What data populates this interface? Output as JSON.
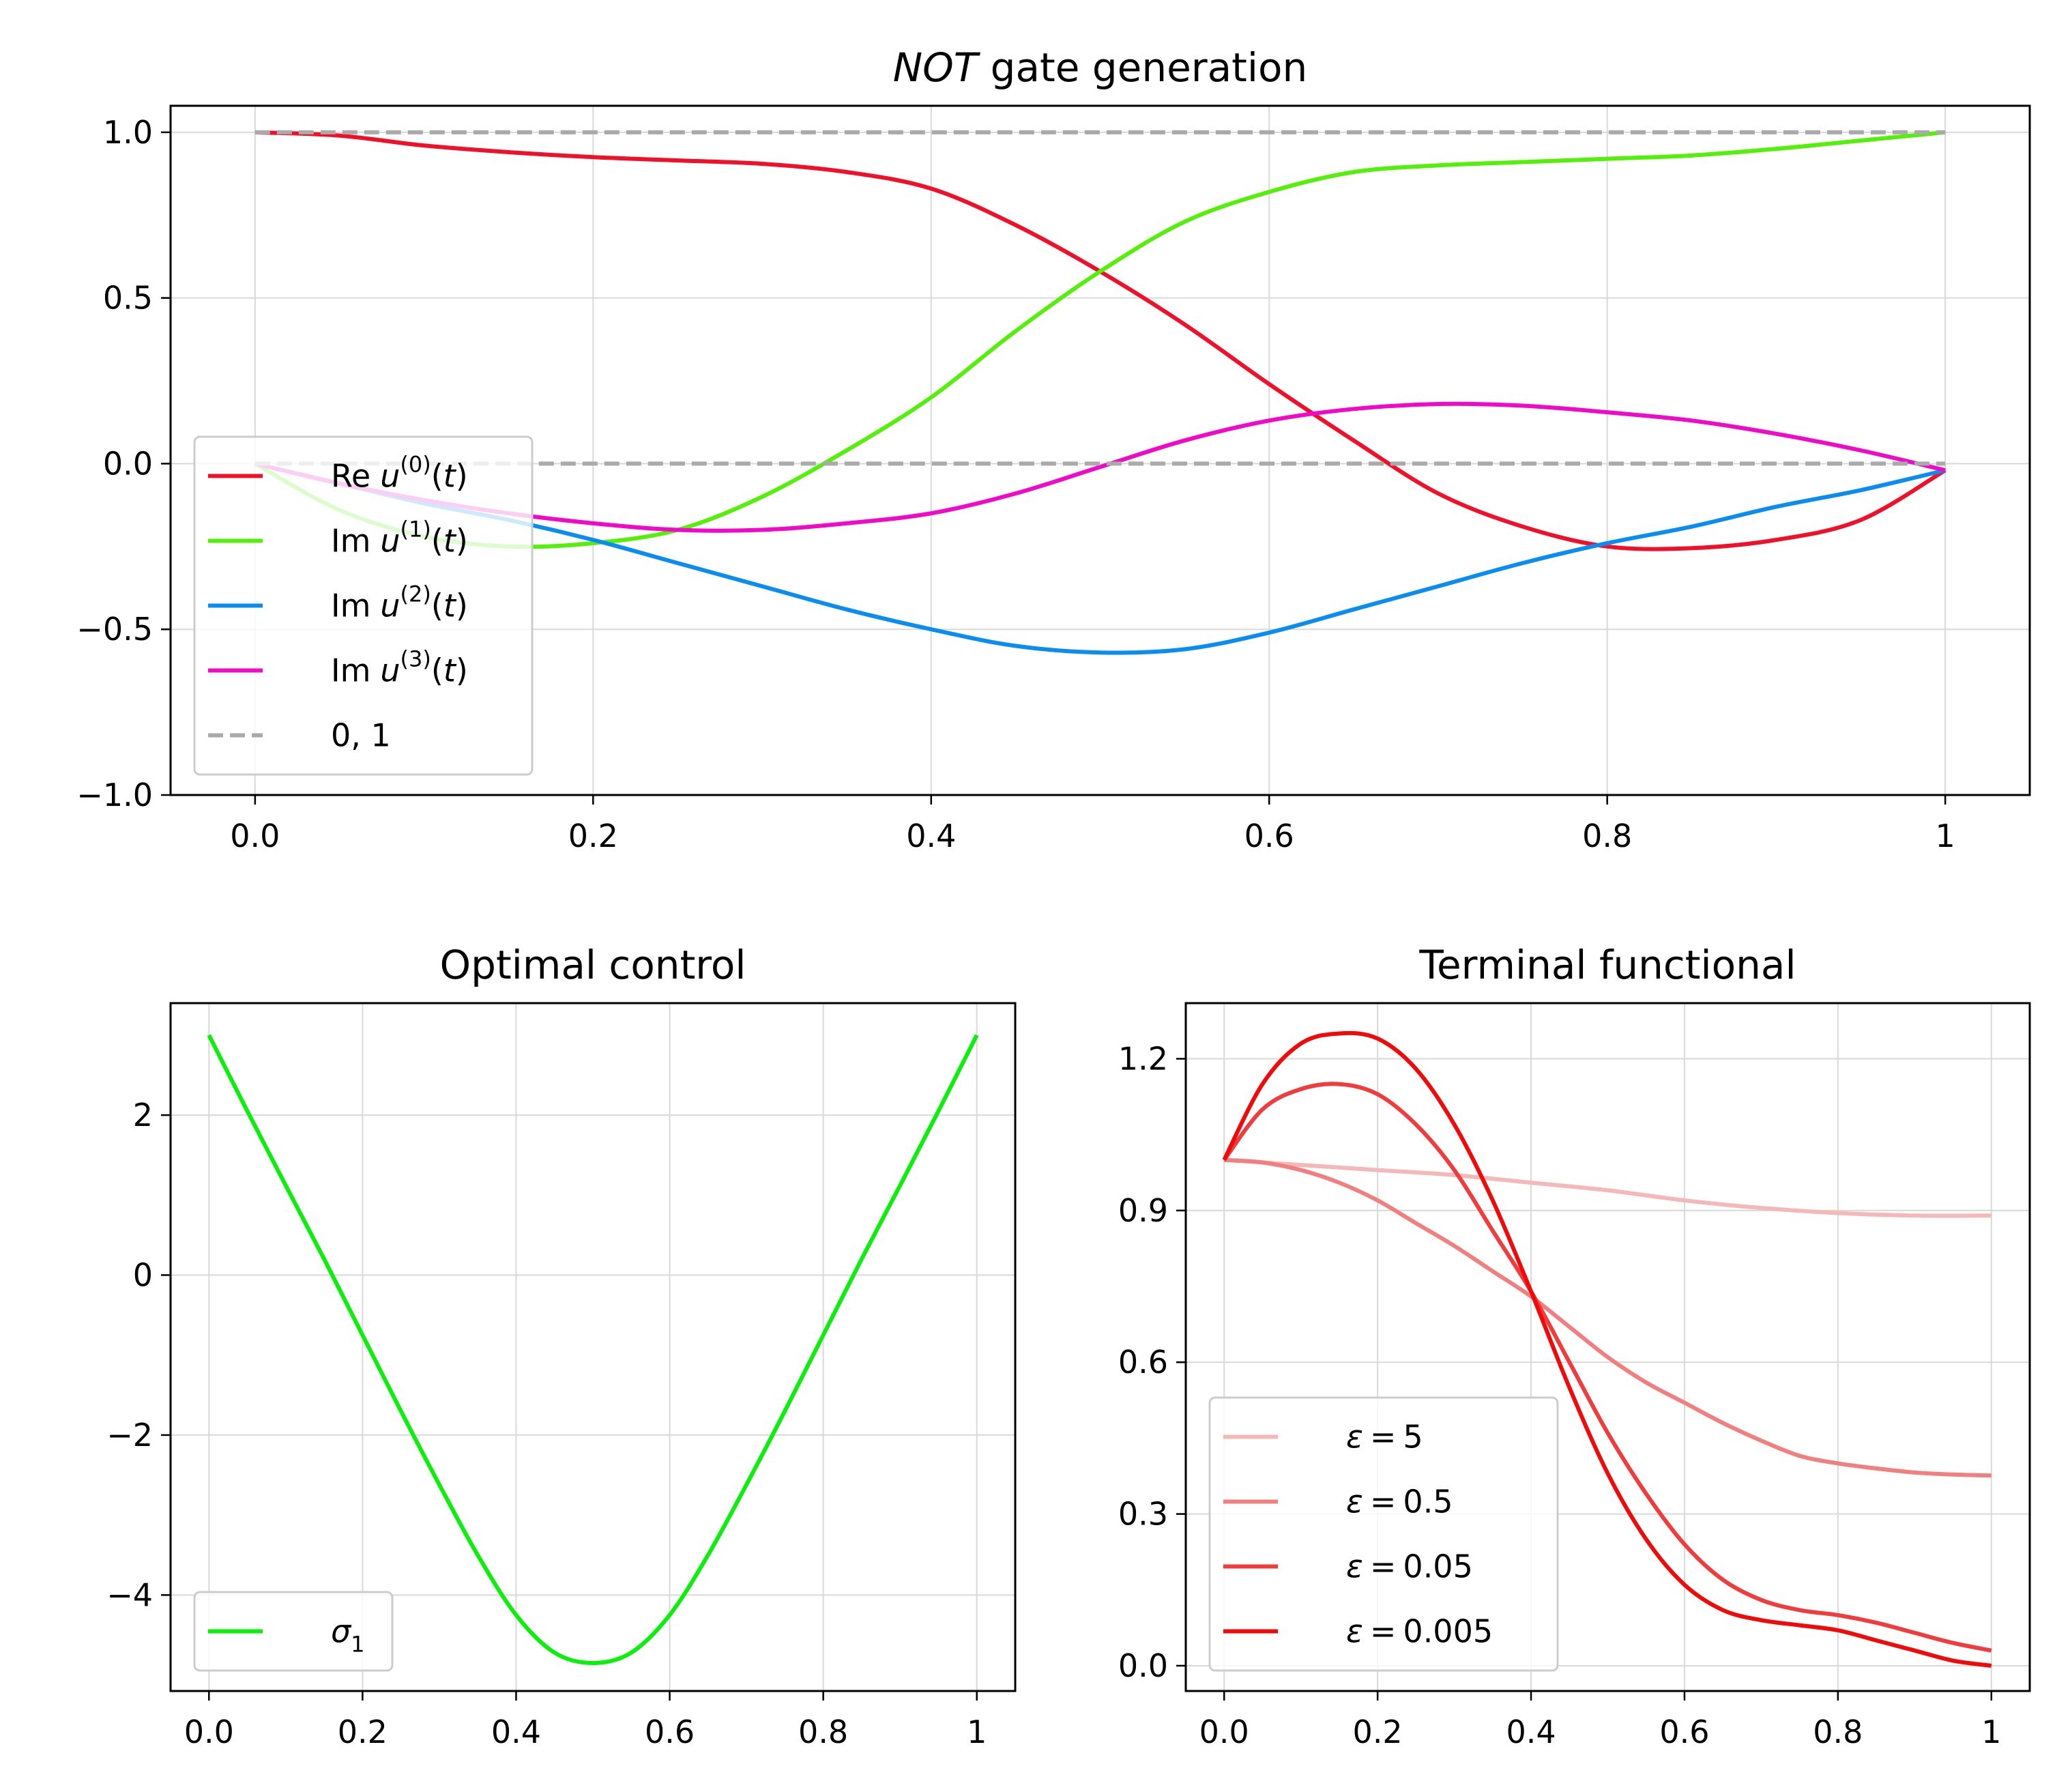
{
  "figure": {
    "background": "#ffffff"
  },
  "chart_data": [
    {
      "id": "top",
      "type": "line",
      "title_italic": "NOT",
      "title_rest": " gate generation",
      "xlim": [
        -0.05,
        1.05
      ],
      "ylim": [
        -1.0,
        1.08
      ],
      "xticks": [
        0.0,
        0.2,
        0.4,
        0.6,
        0.8,
        1.0
      ],
      "xtick_labels": [
        "0.0",
        "0.2",
        "0.4",
        "0.6",
        "0.8",
        "1"
      ],
      "yticks": [
        1.0,
        0.5,
        0.0,
        -0.5,
        -1.0
      ],
      "ytick_labels": [
        "1.0",
        "0.5",
        "0.0",
        "−0.5",
        "−1.0"
      ],
      "grid": true,
      "legend_position": "lower-left",
      "series": [
        {
          "name": "Re u(0)(t)",
          "label_pre": "Re",
          "label_sup": "(0)",
          "color": "#f0102a",
          "style": "solid",
          "x": [
            0.0,
            0.05,
            0.1,
            0.15,
            0.2,
            0.25,
            0.3,
            0.35,
            0.4,
            0.45,
            0.5,
            0.55,
            0.6,
            0.65,
            0.7,
            0.75,
            0.8,
            0.85,
            0.9,
            0.95,
            1.0
          ],
          "y": [
            1.0,
            0.99,
            0.96,
            0.94,
            0.925,
            0.915,
            0.905,
            0.88,
            0.83,
            0.72,
            0.58,
            0.42,
            0.24,
            0.07,
            -0.09,
            -0.19,
            -0.25,
            -0.255,
            -0.23,
            -0.17,
            -0.02
          ]
        },
        {
          "name": "Im u(1)(t)",
          "label_pre": "Im",
          "label_sup": "(1)",
          "color": "#55f00a",
          "style": "solid",
          "x": [
            0.0,
            0.05,
            0.1,
            0.15,
            0.2,
            0.25,
            0.3,
            0.35,
            0.4,
            0.45,
            0.5,
            0.55,
            0.6,
            0.65,
            0.7,
            0.75,
            0.8,
            0.85,
            0.9,
            0.95,
            1.0
          ],
          "y": [
            0.0,
            -0.14,
            -0.22,
            -0.25,
            -0.24,
            -0.2,
            -0.1,
            0.04,
            0.2,
            0.4,
            0.58,
            0.73,
            0.82,
            0.88,
            0.9,
            0.91,
            0.92,
            0.93,
            0.95,
            0.975,
            1.0
          ]
        },
        {
          "name": "Im u(2)(t)",
          "label_pre": "Im",
          "label_sup": "(2)",
          "color": "#0a8cf0",
          "style": "solid",
          "x": [
            0.0,
            0.05,
            0.1,
            0.15,
            0.2,
            0.25,
            0.3,
            0.35,
            0.4,
            0.45,
            0.5,
            0.55,
            0.6,
            0.65,
            0.7,
            0.75,
            0.8,
            0.85,
            0.9,
            0.95,
            1.0
          ],
          "y": [
            0.0,
            -0.06,
            -0.12,
            -0.17,
            -0.23,
            -0.3,
            -0.37,
            -0.44,
            -0.5,
            -0.55,
            -0.57,
            -0.56,
            -0.51,
            -0.44,
            -0.37,
            -0.3,
            -0.24,
            -0.19,
            -0.13,
            -0.08,
            -0.02
          ]
        },
        {
          "name": "Im u(3)(t)",
          "label_pre": "Im",
          "label_sup": "(3)",
          "color": "#f00ac8",
          "style": "solid",
          "x": [
            0.0,
            0.05,
            0.1,
            0.15,
            0.2,
            0.25,
            0.3,
            0.35,
            0.4,
            0.45,
            0.5,
            0.55,
            0.6,
            0.65,
            0.7,
            0.75,
            0.8,
            0.85,
            0.9,
            0.95,
            1.0
          ],
          "y": [
            0.0,
            -0.06,
            -0.11,
            -0.15,
            -0.18,
            -0.2,
            -0.2,
            -0.18,
            -0.15,
            -0.09,
            -0.01,
            0.07,
            0.13,
            0.165,
            0.18,
            0.175,
            0.155,
            0.13,
            0.09,
            0.04,
            -0.02
          ]
        },
        {
          "name": "0, 1",
          "label": "0, 1",
          "color": "#aaaaaa",
          "style": "dashed",
          "legend_only": false,
          "x": [
            0.0,
            1.0
          ],
          "y": [
            1.0,
            1.0
          ]
        },
        {
          "name": "zero-line",
          "color": "#aaaaaa",
          "style": "dashed",
          "legend_hidden": true,
          "x": [
            0.0,
            1.0
          ],
          "y": [
            0.0,
            0.0
          ]
        }
      ]
    },
    {
      "id": "bl",
      "type": "line",
      "title": "Optimal control",
      "xlim": [
        -0.05,
        1.05
      ],
      "ylim": [
        -5.2,
        3.4
      ],
      "xticks": [
        0.0,
        0.2,
        0.4,
        0.6,
        0.8,
        1.0
      ],
      "xtick_labels": [
        "0.0",
        "0.2",
        "0.4",
        "0.6",
        "0.8",
        "1"
      ],
      "yticks": [
        2,
        0,
        -2,
        -4
      ],
      "ytick_labels": [
        "2",
        "0",
        "−2",
        "−4"
      ],
      "grid": true,
      "legend_position": "lower-left",
      "series": [
        {
          "name": "sigma1",
          "label_sigma": "σ",
          "label_sub": "1",
          "color": "#0af00a",
          "style": "solid",
          "x": [
            0.0,
            0.05,
            0.1,
            0.15,
            0.2,
            0.25,
            0.3,
            0.35,
            0.4,
            0.45,
            0.5,
            0.55,
            0.6,
            0.65,
            0.7,
            0.75,
            0.8,
            0.85,
            0.9,
            0.95,
            1.0
          ],
          "y": [
            3.0,
            2.05,
            1.12,
            0.2,
            -0.75,
            -1.7,
            -2.62,
            -3.5,
            -4.25,
            -4.72,
            -4.85,
            -4.72,
            -4.25,
            -3.5,
            -2.62,
            -1.7,
            -0.75,
            0.2,
            1.12,
            2.05,
            3.0
          ]
        }
      ]
    },
    {
      "id": "br",
      "type": "line",
      "title": "Terminal functional",
      "xlim": [
        -0.05,
        1.05
      ],
      "ylim": [
        -0.05,
        1.31
      ],
      "xticks": [
        0.0,
        0.2,
        0.4,
        0.6,
        0.8,
        1.0
      ],
      "xtick_labels": [
        "0.0",
        "0.2",
        "0.4",
        "0.6",
        "0.8",
        "1"
      ],
      "yticks": [
        1.2,
        0.9,
        0.6,
        0.3,
        0.0
      ],
      "ytick_labels": [
        "1.2",
        "0.9",
        "0.6",
        "0.3",
        "0.0"
      ],
      "grid": true,
      "legend_position": "lower-left",
      "series": [
        {
          "name": "eps=5",
          "label_val": "5",
          "color": "#f5b8b8",
          "style": "solid",
          "x": [
            0.0,
            0.1,
            0.2,
            0.3,
            0.4,
            0.5,
            0.6,
            0.7,
            0.8,
            0.9,
            1.0
          ],
          "y": [
            1.0,
            0.99,
            0.98,
            0.97,
            0.955,
            0.94,
            0.92,
            0.905,
            0.895,
            0.89,
            0.89
          ]
        },
        {
          "name": "eps=0.5",
          "label_val": "0.5",
          "color": "#f27f7f",
          "style": "solid",
          "x": [
            0.0,
            0.05,
            0.1,
            0.15,
            0.2,
            0.25,
            0.3,
            0.35,
            0.4,
            0.45,
            0.5,
            0.55,
            0.6,
            0.65,
            0.7,
            0.75,
            0.8,
            0.85,
            0.9,
            0.95,
            1.0
          ],
          "y": [
            1.0,
            0.995,
            0.98,
            0.955,
            0.92,
            0.875,
            0.83,
            0.78,
            0.73,
            0.67,
            0.61,
            0.56,
            0.52,
            0.48,
            0.445,
            0.415,
            0.4,
            0.39,
            0.382,
            0.378,
            0.376
          ]
        },
        {
          "name": "eps=0.05",
          "label_val": "0.05",
          "color": "#f03c3c",
          "style": "solid",
          "x": [
            0.0,
            0.05,
            0.1,
            0.15,
            0.2,
            0.25,
            0.3,
            0.35,
            0.4,
            0.45,
            0.5,
            0.55,
            0.6,
            0.65,
            0.7,
            0.75,
            0.8,
            0.85,
            0.9,
            0.95,
            1.0
          ],
          "y": [
            1.0,
            1.1,
            1.14,
            1.15,
            1.13,
            1.07,
            0.98,
            0.86,
            0.74,
            0.6,
            0.46,
            0.34,
            0.24,
            0.17,
            0.13,
            0.11,
            0.1,
            0.085,
            0.065,
            0.045,
            0.03
          ]
        },
        {
          "name": "eps=0.005",
          "label_val": "0.005",
          "color": "#f00a0a",
          "style": "solid",
          "x": [
            0.0,
            0.05,
            0.1,
            0.15,
            0.2,
            0.25,
            0.3,
            0.35,
            0.4,
            0.45,
            0.5,
            0.55,
            0.6,
            0.65,
            0.7,
            0.75,
            0.8,
            0.85,
            0.9,
            0.95,
            1.0
          ],
          "y": [
            1.0,
            1.15,
            1.23,
            1.25,
            1.24,
            1.18,
            1.07,
            0.92,
            0.74,
            0.55,
            0.38,
            0.25,
            0.16,
            0.11,
            0.09,
            0.08,
            0.07,
            0.05,
            0.03,
            0.01,
            0.0
          ]
        }
      ]
    }
  ]
}
